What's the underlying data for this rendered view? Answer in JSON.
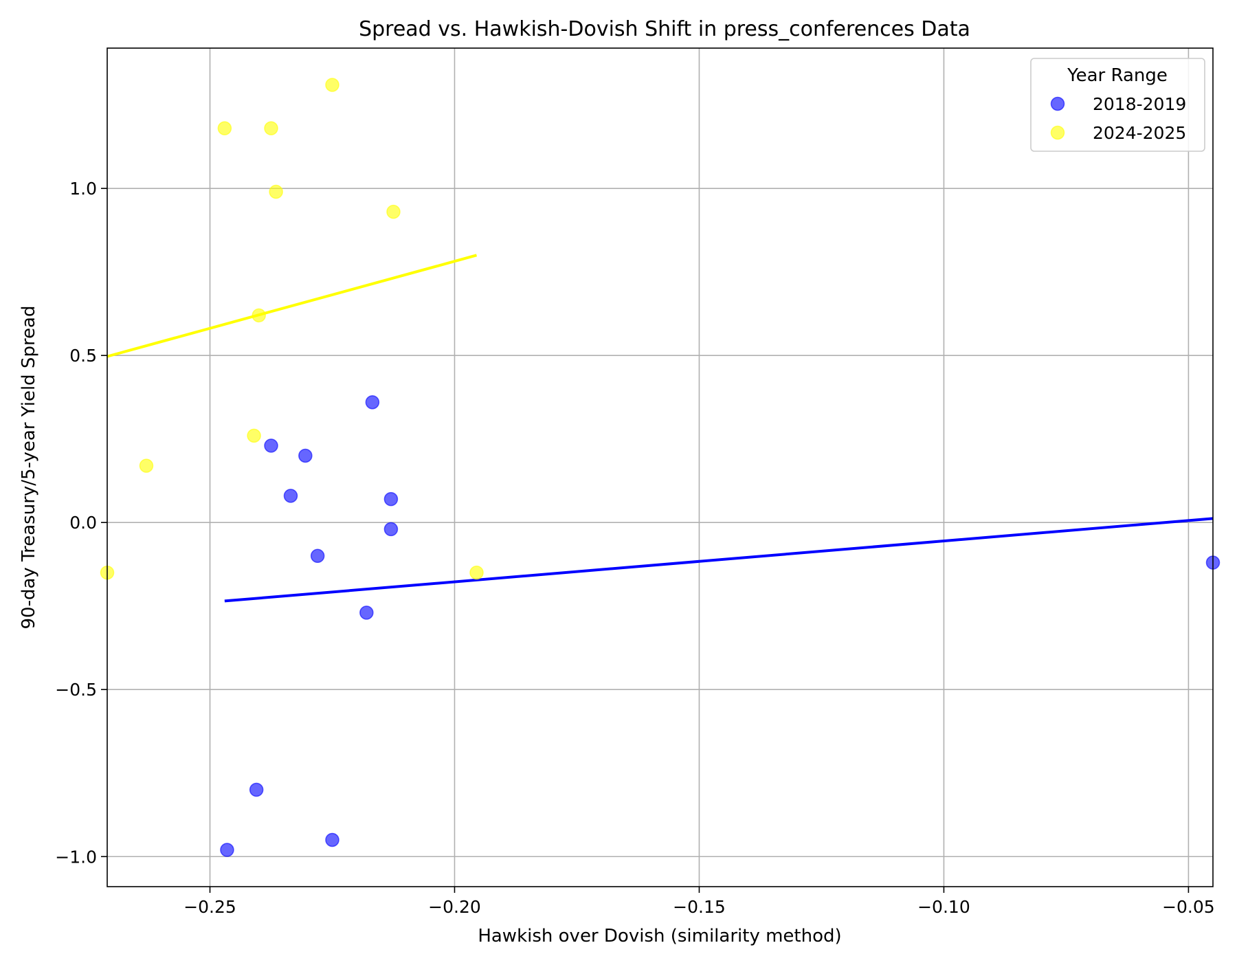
{
  "chart_data": {
    "type": "scatter",
    "title": "Spread vs. Hawkish-Dovish Shift in press_conferences Data",
    "xlabel": "Hawkish over Dovish (similarity method)",
    "ylabel": "90-day Treasury/5-year Yield Spread",
    "xlim": [
      -0.271,
      -0.045
    ],
    "ylim": [
      -1.09,
      1.42
    ],
    "x_ticks": [
      -0.25,
      -0.2,
      -0.15,
      -0.1,
      -0.05
    ],
    "x_tick_labels": [
      "−0.25",
      "−0.20",
      "−0.15",
      "−0.10",
      "−0.05"
    ],
    "y_ticks": [
      -1.0,
      -0.5,
      0.0,
      0.5,
      1.0
    ],
    "y_tick_labels": [
      "−1.0",
      "−0.5",
      "0.0",
      "0.5",
      "1.0"
    ],
    "grid": true,
    "legend": {
      "title": "Year Range",
      "position": "top-right"
    },
    "series": [
      {
        "name": "2018-2019",
        "color": "#0000ff",
        "points": [
          {
            "x": -0.2465,
            "y": -0.98
          },
          {
            "x": -0.2405,
            "y": -0.8
          },
          {
            "x": -0.2375,
            "y": 0.23
          },
          {
            "x": -0.2335,
            "y": 0.08
          },
          {
            "x": -0.2305,
            "y": 0.2
          },
          {
            "x": -0.228,
            "y": -0.1
          },
          {
            "x": -0.225,
            "y": -0.95
          },
          {
            "x": -0.218,
            "y": -0.27
          },
          {
            "x": -0.2168,
            "y": 0.36
          },
          {
            "x": -0.213,
            "y": 0.07
          },
          {
            "x": -0.213,
            "y": -0.02
          },
          {
            "x": -0.045,
            "y": -0.12
          }
        ],
        "trendline": {
          "x": [
            -0.247,
            -0.045
          ],
          "y": [
            -0.235,
            0.012
          ]
        }
      },
      {
        "name": "2024-2025",
        "color": "#ffff00",
        "points": [
          {
            "x": -0.271,
            "y": -0.15
          },
          {
            "x": -0.263,
            "y": 0.17
          },
          {
            "x": -0.247,
            "y": 1.18
          },
          {
            "x": -0.241,
            "y": 0.26
          },
          {
            "x": -0.24,
            "y": 0.62
          },
          {
            "x": -0.2375,
            "y": 1.18
          },
          {
            "x": -0.2365,
            "y": 0.99
          },
          {
            "x": -0.225,
            "y": 1.31
          },
          {
            "x": -0.2125,
            "y": 0.93
          },
          {
            "x": -0.1955,
            "y": -0.15
          }
        ],
        "trendline": {
          "x": [
            -0.271,
            -0.1955
          ],
          "y": [
            0.497,
            0.8
          ]
        }
      }
    ]
  }
}
